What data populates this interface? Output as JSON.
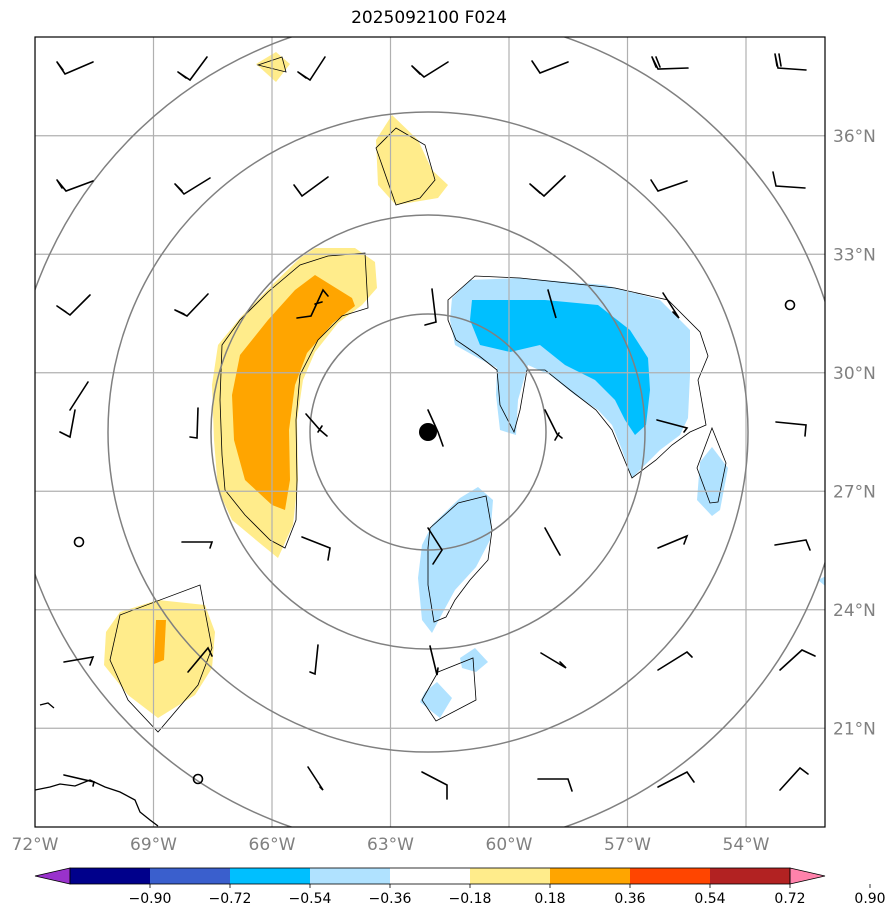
{
  "title": "2025092100 F024",
  "chart_data": {
    "type": "filled-contour map",
    "title": "2025092100 F024",
    "x_ticks": [
      "72°W",
      "69°W",
      "66°W",
      "63°W",
      "60°W",
      "57°W",
      "54°W"
    ],
    "x_values": [
      -72,
      -69,
      -66,
      -63,
      -60,
      -57,
      -54
    ],
    "y_ticks": [
      "21°N",
      "24°N",
      "27°N",
      "30°N",
      "33°N",
      "36°N"
    ],
    "y_values": [
      21,
      24,
      27,
      30,
      33,
      36
    ],
    "xlim": [
      -72,
      -52
    ],
    "ylim": [
      18.5,
      38.5
    ],
    "grid": true,
    "colorbar": {
      "levels": [
        "−0.90",
        "−0.72",
        "−0.54",
        "−0.36",
        "−0.18",
        "0.18",
        "0.36",
        "0.54",
        "0.72",
        "0.90"
      ],
      "colors": [
        "#9932cc",
        "#00008b",
        "#3a5fcd",
        "#00bfff",
        "#b0e2ff",
        "#ffffff",
        "#ffec8b",
        "#ffa500",
        "#ff4500",
        "#b22222",
        "#ff82ab"
      ]
    },
    "center_marker": {
      "lon": -62.1,
      "lat": 28.8
    },
    "range_rings_deg": [
      3,
      5.5,
      8,
      10.5
    ]
  }
}
